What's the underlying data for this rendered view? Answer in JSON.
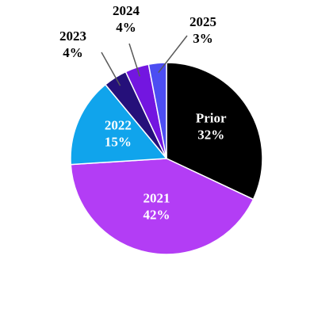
{
  "chart_data": {
    "type": "pie",
    "title": "",
    "slices": [
      {
        "label": "Prior",
        "value": 32,
        "display": "32%",
        "color": "#000000",
        "text_color": "#ffffff"
      },
      {
        "label": "2021",
        "value": 42,
        "display": "42%",
        "color": "#b33df5",
        "text_color": "#ffffff"
      },
      {
        "label": "2022",
        "value": 15,
        "display": "15%",
        "color": "#10a4ec",
        "text_color": "#ffffff"
      },
      {
        "label": "2023",
        "value": 4,
        "display": "4%",
        "color": "#25107a",
        "text_color": "#000000"
      },
      {
        "label": "2024",
        "value": 4,
        "display": "4%",
        "color": "#7316e0",
        "text_color": "#000000"
      },
      {
        "label": "2025",
        "value": 3,
        "display": "3%",
        "color": "#4c4df2",
        "text_color": "#000000"
      }
    ],
    "legend": false
  }
}
